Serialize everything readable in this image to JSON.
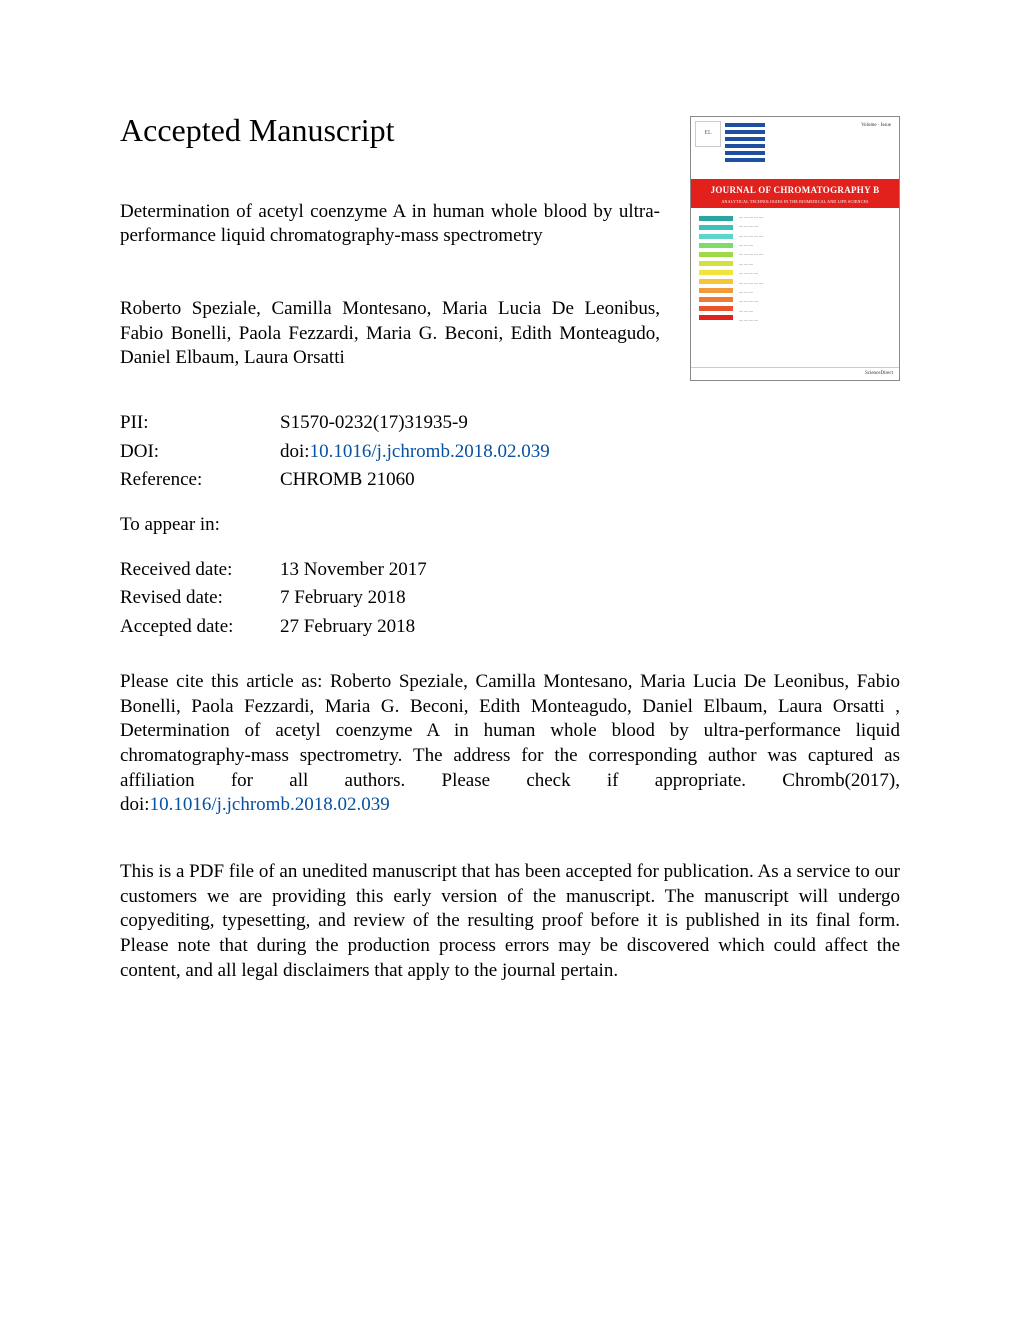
{
  "heading": "Accepted Manuscript",
  "title": "Determination of acetyl coenzyme A in human whole blood by ultra-performance liquid chromatography-mass spectrometry",
  "authors": "Roberto Speziale, Camilla Montesano, Maria Lucia De Leonibus, Fabio Bonelli, Paola Fezzardi, Maria G. Beconi, Edith Monteagudo, Daniel Elbaum, Laura Orsatti",
  "meta": {
    "pii_label": "PII:",
    "pii": "S1570-0232(17)31935-9",
    "doi_label": "DOI:",
    "doi_prefix": "doi:",
    "doi": "10.1016/j.jchromb.2018.02.039",
    "ref_label": "Reference:",
    "ref": "CHROMB 21060",
    "appear_label": "To appear in:",
    "appear": "",
    "received_label": "Received date:",
    "received": "13 November 2017",
    "revised_label": "Revised date:",
    "revised": "7 February 2018",
    "accepted_label": "Accepted date:",
    "accepted": "27 February 2018"
  },
  "citation_pre": "Please cite this article as: Roberto Speziale, Camilla Montesano, Maria Lucia De Leonibus, Fabio Bonelli, Paola Fezzardi, Maria G. Beconi, Edith Monteagudo, Daniel Elbaum, Laura Orsatti , Determination of acetyl coenzyme A in human whole blood by ultra-performance liquid chromatography-mass spectrometry. The address for the corresponding author was captured as affiliation for all authors. Please check if appropriate. Chromb(2017), doi:",
  "citation_doi": "10.1016/j.jchromb.2018.02.039",
  "disclaimer": "This is a PDF file of an unedited manuscript that has been accepted for publication. As a service to our customers we are providing this early version of the manuscript. The manuscript will undergo copyediting, typesetting, and review of the resulting proof before it is published in its final form. Please note that during the production process errors may be discovered which could affect the content, and all legal disclaimers that apply to the journal pertain.",
  "cover": {
    "journal_title": "JOURNAL OF CHROMATOGRAPHY B",
    "journal_subtitle": "ANALYTICAL TECHNOLOGIES IN THE BIOMEDICAL AND LIFE SCIENCES",
    "bar_colors": [
      "#2aa6a0",
      "#3cc2bd",
      "#5fd4c8",
      "#7edc6b",
      "#a0d94a",
      "#d7df3e",
      "#f2e33a",
      "#f7c53a",
      "#f29b3a",
      "#ef7a33",
      "#e9542d",
      "#e2201c"
    ],
    "publisher": "ScienceDirect"
  },
  "colors": {
    "link": "#0651a0",
    "red": "#e2201c",
    "blue_stripe": "#1e4fa3"
  }
}
